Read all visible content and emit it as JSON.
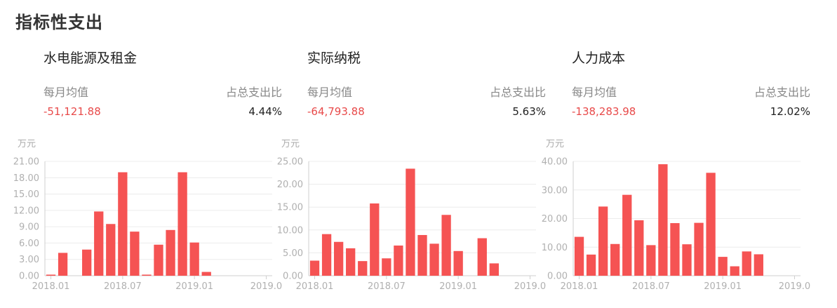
{
  "page_title": "指标性支出",
  "panels": [
    {
      "title": "水电能源及租金",
      "metric_label": "每月均值",
      "metric_value": "-51,121.88",
      "ratio_label": "占总支出比",
      "ratio_value": "4.44%"
    },
    {
      "title": "实际纳税",
      "metric_label": "每月均值",
      "metric_value": "-64,793.88",
      "ratio_label": "占总支出比",
      "ratio_value": "5.63%"
    },
    {
      "title": "人力成本",
      "metric_label": "每月均值",
      "metric_value": "-138,283.98",
      "ratio_label": "占总支出比",
      "ratio_value": "12.02%"
    }
  ],
  "chart_data": [
    {
      "type": "bar",
      "title": "水电能源及租金",
      "ylabel": "万元",
      "ylim": [
        0,
        21
      ],
      "yticks": [
        "0.00",
        "3.00",
        "6.00",
        "9.00",
        "12.00",
        "15.00",
        "18.00",
        "21.00"
      ],
      "xtick_labels": [
        "2018.01",
        "2018.07",
        "2019.01",
        "2019.0"
      ],
      "bar_color": "#f55353",
      "categories": [
        "2018.01",
        "2018.02",
        "2018.03",
        "2018.04",
        "2018.05",
        "2018.06",
        "2018.07",
        "2018.08",
        "2018.09",
        "2018.10",
        "2018.11",
        "2018.12",
        "2019.01",
        "2019.02",
        "2019.03",
        "2019.04",
        "2019.05",
        "2019.06",
        "2019.07"
      ],
      "values": [
        0.2,
        4.2,
        0,
        4.8,
        11.8,
        9.5,
        19.0,
        8.1,
        0.2,
        5.7,
        8.4,
        19.0,
        6.1,
        0.7,
        0,
        0,
        0,
        0,
        0
      ]
    },
    {
      "type": "bar",
      "title": "实际纳税",
      "ylabel": "万元",
      "ylim": [
        0,
        25
      ],
      "yticks": [
        "0.00",
        "5.00",
        "10.00",
        "15.00",
        "20.00",
        "25.00"
      ],
      "xtick_labels": [
        "2018.01",
        "2018.07",
        "2019.01",
        "2019.0"
      ],
      "bar_color": "#f55353",
      "categories": [
        "2018.01",
        "2018.02",
        "2018.03",
        "2018.04",
        "2018.05",
        "2018.06",
        "2018.07",
        "2018.08",
        "2018.09",
        "2018.10",
        "2018.11",
        "2018.12",
        "2019.01",
        "2019.02",
        "2019.03",
        "2019.04",
        "2019.05",
        "2019.06",
        "2019.07"
      ],
      "values": [
        3.3,
        9.1,
        7.4,
        6.0,
        3.2,
        15.8,
        3.8,
        6.6,
        23.4,
        8.9,
        7.0,
        13.3,
        5.4,
        0,
        8.2,
        2.7,
        0,
        0,
        0
      ]
    },
    {
      "type": "bar",
      "title": "人力成本",
      "ylabel": "万元",
      "ylim": [
        0,
        40
      ],
      "yticks": [
        "0.00",
        "10.00",
        "20.00",
        "30.00",
        "40.00"
      ],
      "xtick_labels": [
        "2018.01",
        "2018.07",
        "2019.01",
        "2019.0"
      ],
      "bar_color": "#f55353",
      "categories": [
        "2018.01",
        "2018.02",
        "2018.03",
        "2018.04",
        "2018.05",
        "2018.06",
        "2018.07",
        "2018.08",
        "2018.09",
        "2018.10",
        "2018.11",
        "2018.12",
        "2019.01",
        "2019.02",
        "2019.03",
        "2019.04",
        "2019.05",
        "2019.06",
        "2019.07"
      ],
      "values": [
        13.6,
        7.4,
        24.2,
        11.1,
        28.3,
        19.4,
        10.7,
        39.0,
        18.4,
        11.0,
        18.5,
        36.0,
        6.6,
        3.3,
        8.5,
        7.5,
        0,
        0,
        0
      ]
    }
  ]
}
